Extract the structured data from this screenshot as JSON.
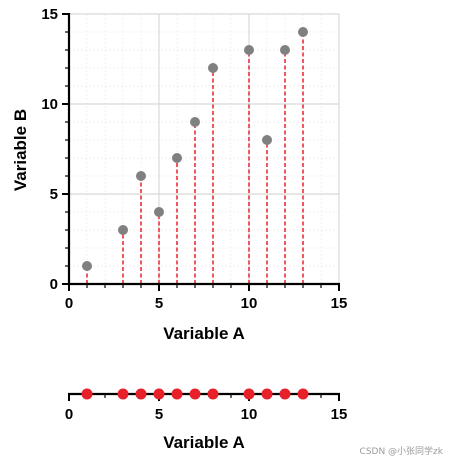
{
  "chart_data": [
    {
      "type": "scatter",
      "style": "lollipop",
      "xlabel": "Variable A",
      "ylabel": "Variable B",
      "xlim": [
        0,
        15
      ],
      "ylim": [
        0,
        15
      ],
      "x_ticks": [
        0,
        5,
        10,
        15
      ],
      "y_ticks": [
        0,
        5,
        10,
        15
      ],
      "x_tick_labels": [
        "0",
        "5",
        "10",
        "15"
      ],
      "y_tick_labels": [
        "0",
        "5",
        "10",
        "15"
      ],
      "grid": true,
      "minor_grid": true,
      "point_color": "#808080",
      "stem_color": "#e8202a",
      "stem_style": "dashed",
      "x": [
        1,
        3,
        4,
        5,
        6,
        7,
        8,
        10,
        11,
        12,
        13
      ],
      "y": [
        1,
        3,
        6,
        4,
        7,
        9,
        12,
        13,
        8,
        13,
        14
      ]
    },
    {
      "type": "scatter",
      "style": "strip",
      "xlabel": "Variable A",
      "xlim": [
        0,
        15
      ],
      "x_ticks": [
        0,
        5,
        10,
        15
      ],
      "x_tick_labels": [
        "0",
        "5",
        "10",
        "15"
      ],
      "point_color": "#e8202a",
      "x": [
        1,
        3,
        4,
        5,
        6,
        7,
        8,
        10,
        11,
        12,
        13
      ]
    }
  ],
  "watermark": "CSDN @小张同学zk"
}
